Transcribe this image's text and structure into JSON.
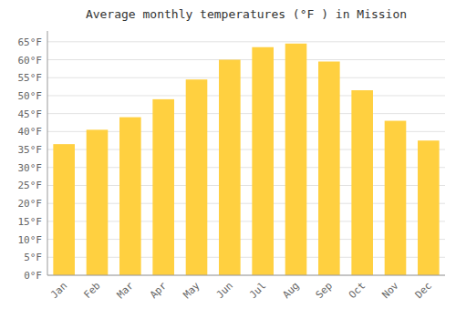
{
  "chart_data": {
    "type": "bar",
    "title": "Average monthly temperatures (°F ) in Mission",
    "categories": [
      "Jan",
      "Feb",
      "Mar",
      "Apr",
      "May",
      "Jun",
      "Jul",
      "Aug",
      "Sep",
      "Oct",
      "Nov",
      "Dec"
    ],
    "values": [
      36.5,
      40.5,
      44.0,
      49.0,
      54.5,
      60.0,
      63.5,
      64.5,
      59.5,
      51.5,
      43.0,
      37.5
    ],
    "color": "#FFD040",
    "ylim": [
      0,
      68
    ],
    "yticks": [
      {
        "value": 0,
        "label": "0°F"
      },
      {
        "value": 5,
        "label": "5°F"
      },
      {
        "value": 10,
        "label": "10°F"
      },
      {
        "value": 15,
        "label": "15°F"
      },
      {
        "value": 20,
        "label": "20°F"
      },
      {
        "value": 25,
        "label": "25°F"
      },
      {
        "value": 30,
        "label": "30°F"
      },
      {
        "value": 35,
        "label": "35°F"
      },
      {
        "value": 40,
        "label": "40°F"
      },
      {
        "value": 45,
        "label": "45°F"
      },
      {
        "value": 50,
        "label": "50°F"
      },
      {
        "value": 55,
        "label": "55°F"
      },
      {
        "value": 60,
        "label": "60°F"
      },
      {
        "value": 65,
        "label": "65°F"
      }
    ],
    "grid": true
  }
}
